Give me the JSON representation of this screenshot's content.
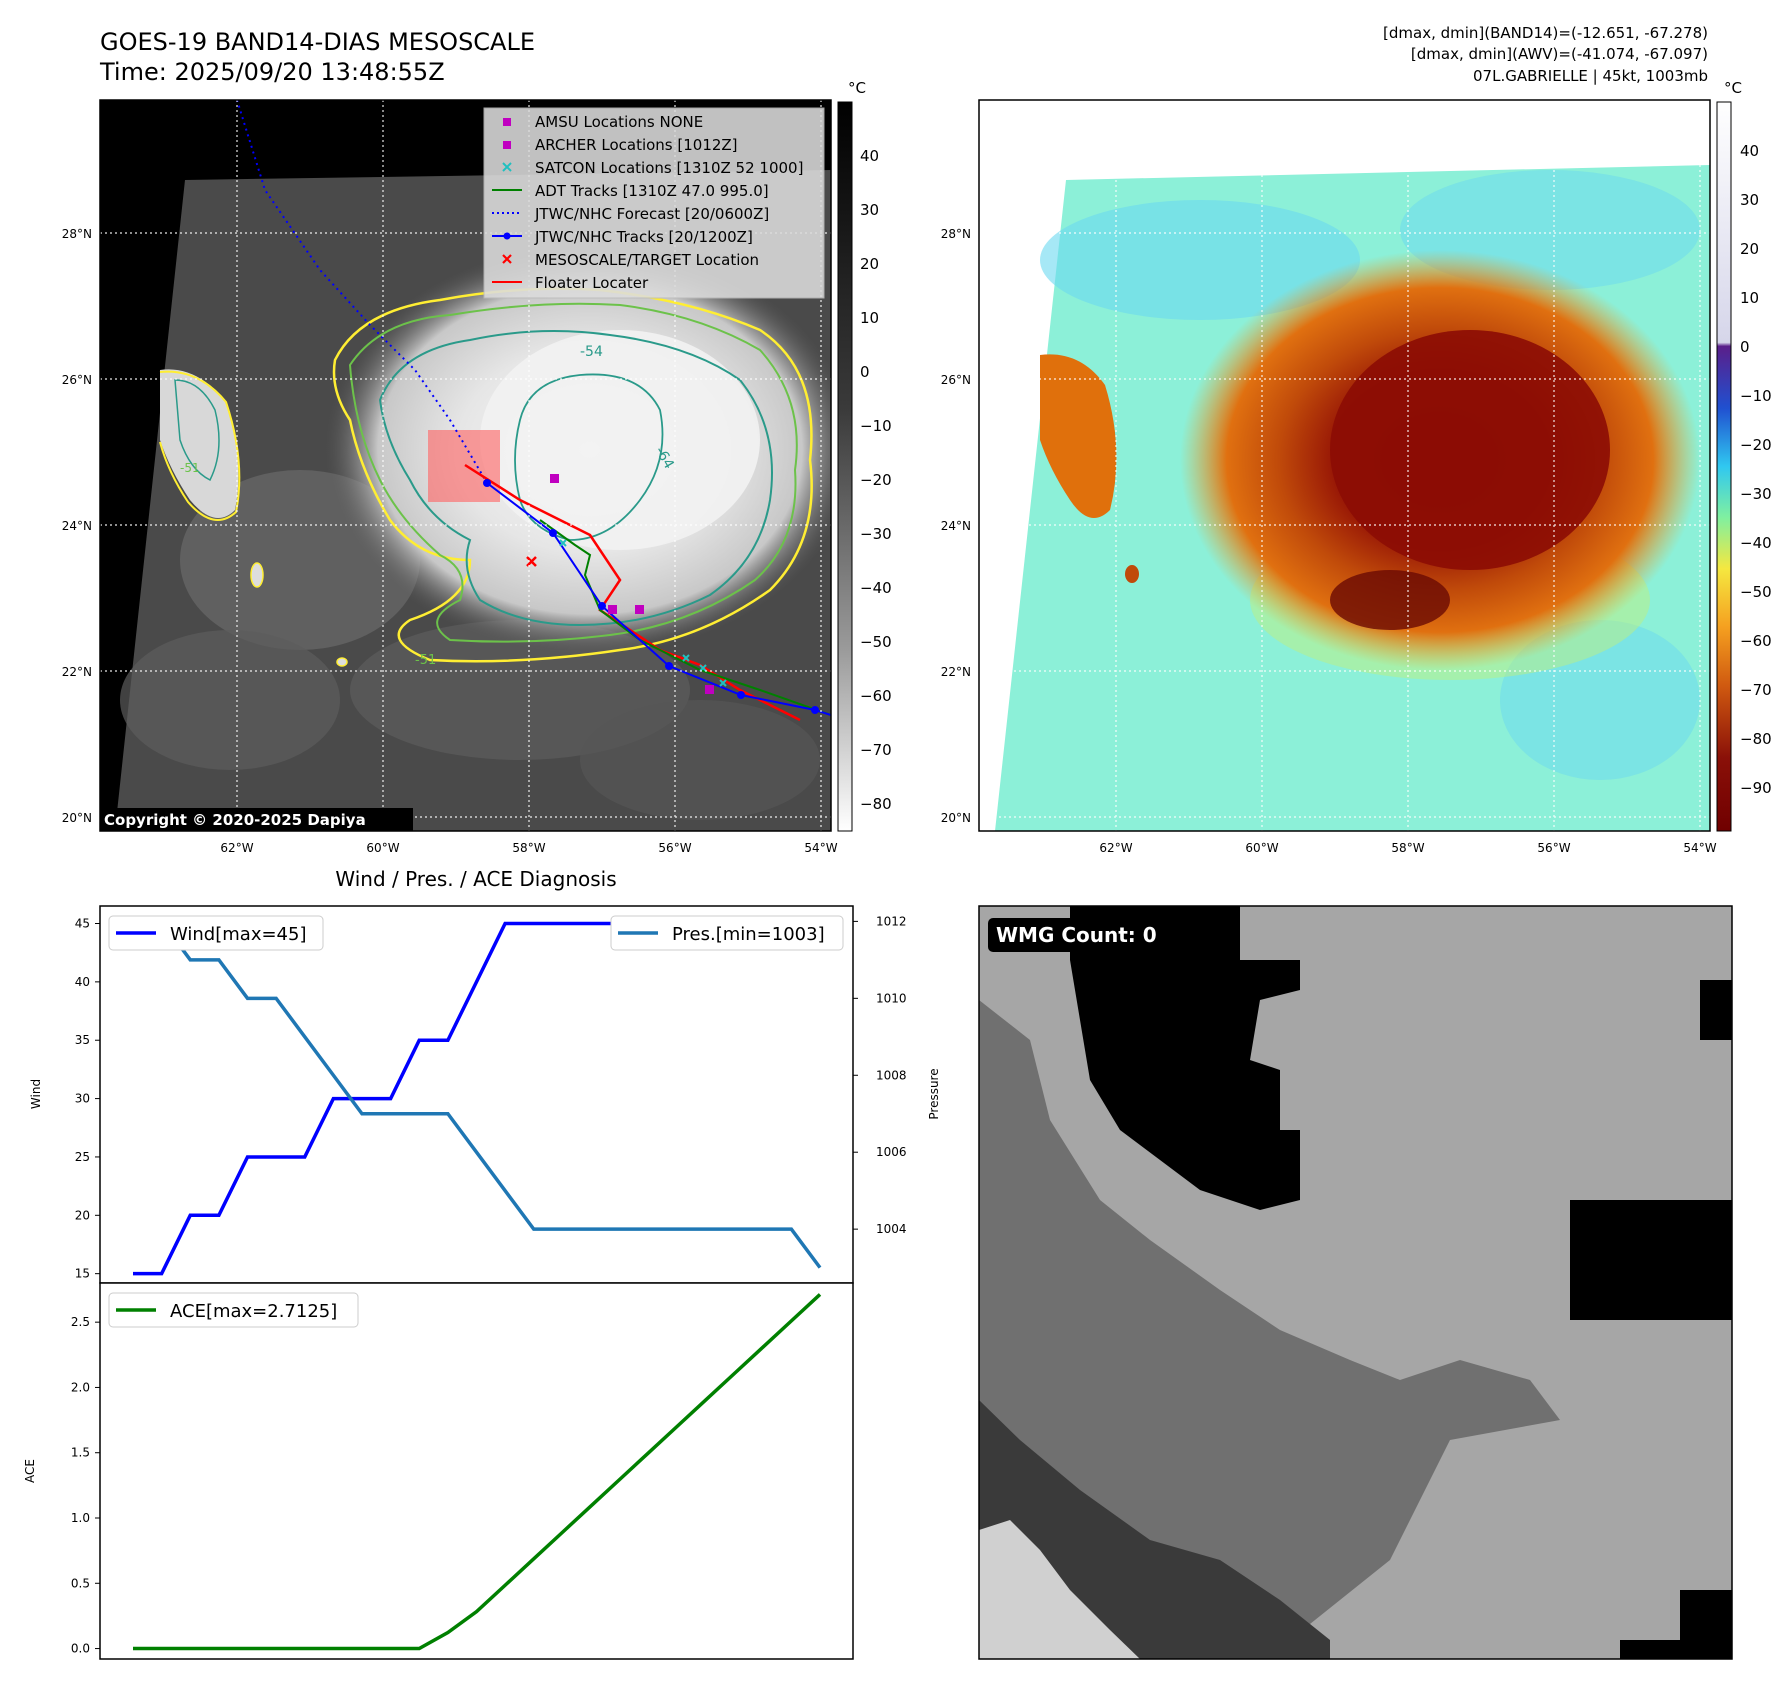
{
  "header": {
    "title": "GOES-19 BAND14-DIAS MESOSCALE",
    "time": "Time: 2025/09/20 13:48:55Z",
    "stat_band14": "[dmax, dmin](BAND14)=(-12.651, -67.278)",
    "stat_awv": "[dmax, dmin](AWV)=(-41.074, -67.097)",
    "storm_info": "07L.GABRIELLE | 45kt, 1003mb"
  },
  "map": {
    "lat_labels": [
      "28°N",
      "26°N",
      "24°N",
      "22°N",
      "20°N"
    ],
    "lon_labels": [
      "62°W",
      "60°W",
      "58°W",
      "56°W",
      "54°W"
    ],
    "copyright": "Copyright © 2020-2025 Dapiya",
    "contour_labels": [
      "-54",
      "-64",
      "-51",
      "-51"
    ],
    "colors": {
      "contour_yellow": "#ffee33",
      "contour_green": "#6cc24a",
      "contour_teal": "#2a9a8a",
      "contour_blue": "#3040a0"
    }
  },
  "legend": {
    "items": [
      {
        "label": "AMSU Locations NONE",
        "color": "#c000c0",
        "marker": "square"
      },
      {
        "label": "ARCHER Locations [1012Z]",
        "color": "#c000c0",
        "marker": "square"
      },
      {
        "label": "SATCON Locations [1310Z 52 1000]",
        "color": "#20c0c0",
        "marker": "x"
      },
      {
        "label": "ADT Tracks [1310Z 47.0 995.0]",
        "color": "#008000",
        "marker": "line"
      },
      {
        "label": "JTWC/NHC Forecast [20/0600Z]",
        "color": "#0000ff",
        "marker": "dotted"
      },
      {
        "label": "JTWC/NHC Tracks [20/1200Z]",
        "color": "#0000ff",
        "marker": "line-dot"
      },
      {
        "label": "MESOSCALE/TARGET Location",
        "color": "#ff0000",
        "marker": "x"
      },
      {
        "label": "Floater Locater",
        "color": "#ff0000",
        "marker": "line"
      }
    ]
  },
  "colorbars": {
    "unit": "°C",
    "gray_ticks": [
      "40",
      "30",
      "20",
      "10",
      "0",
      "−10",
      "−20",
      "−30",
      "−40",
      "−50",
      "−60",
      "−70",
      "−80"
    ],
    "color_ticks": [
      "40",
      "30",
      "20",
      "10",
      "0",
      "−10",
      "−20",
      "−30",
      "−40",
      "−50",
      "−60",
      "−70",
      "−80",
      "−90"
    ]
  },
  "diagnosis": {
    "title": "Wind / Pres. / ACE Diagnosis",
    "wmg_label": "WMG Count: 0"
  },
  "chart_data": [
    {
      "type": "line",
      "title": "Wind / Pres. / ACE Diagnosis",
      "ylabel": "Wind",
      "y2label": "Pressure",
      "ylim": [
        14.2,
        46.5
      ],
      "y2lim": [
        1002.6,
        1012.4
      ],
      "yticks": [
        "15",
        "20",
        "25",
        "30",
        "35",
        "40",
        "45"
      ],
      "y2ticks": [
        "1004",
        "1006",
        "1008",
        "1010",
        "1012"
      ],
      "series": [
        {
          "name": "Wind[max=45]",
          "color": "#0000ff",
          "axis": "left",
          "x": [
            0,
            1,
            2,
            3,
            4,
            5,
            6,
            7,
            8,
            9,
            10,
            11,
            12,
            13,
            14,
            15,
            16,
            17,
            18,
            19,
            20,
            21,
            22,
            23,
            24
          ],
          "values": [
            15,
            15,
            20,
            20,
            25,
            25,
            25,
            30,
            30,
            30,
            35,
            35,
            40,
            45,
            45,
            45,
            45,
            45,
            45,
            45,
            45,
            45,
            45,
            45,
            45
          ]
        },
        {
          "name": "Pres.[min=1003]",
          "color": "#1f77b4",
          "axis": "right",
          "x": [
            0,
            1,
            2,
            3,
            4,
            5,
            6,
            7,
            8,
            9,
            10,
            11,
            12,
            13,
            14,
            15,
            16,
            17,
            18,
            19,
            20,
            21,
            22,
            23,
            24
          ],
          "values": [
            1012,
            1012,
            1011,
            1011,
            1010,
            1010,
            1009,
            1008,
            1007,
            1007,
            1007,
            1007,
            1006,
            1005,
            1004,
            1004,
            1004,
            1004,
            1004,
            1004,
            1004,
            1004,
            1004,
            1004,
            1003
          ]
        }
      ]
    },
    {
      "type": "line",
      "ylabel": "ACE",
      "ylim": [
        -0.08,
        2.8
      ],
      "yticks": [
        "0.0",
        "0.5",
        "1.0",
        "1.5",
        "2.0",
        "2.5"
      ],
      "series": [
        {
          "name": "ACE[max=2.7125]",
          "color": "#008000",
          "x": [
            0,
            1,
            2,
            3,
            4,
            5,
            6,
            7,
            8,
            9,
            10,
            11,
            12,
            13,
            14,
            15,
            16,
            17,
            18,
            19,
            20,
            21,
            22,
            23,
            24
          ],
          "values": [
            0,
            0,
            0,
            0,
            0,
            0,
            0,
            0,
            0,
            0,
            0,
            0.1225,
            0.2825,
            0.485,
            0.6875,
            0.89,
            1.0925,
            1.295,
            1.4975,
            1.7,
            1.9025,
            2.105,
            2.3075,
            2.51,
            2.7125
          ]
        }
      ]
    }
  ]
}
